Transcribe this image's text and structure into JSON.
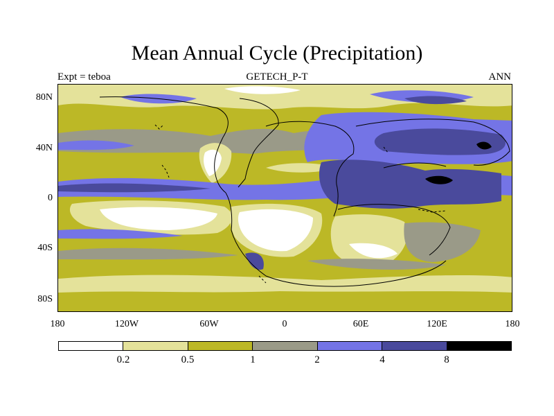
{
  "title": "Mean Annual Cycle (Precipitation)",
  "subtitle_left": "Expt = teboa",
  "subtitle_center": "GETECH_P-T",
  "subtitle_right": "ANN",
  "lat_labels": [
    "80N",
    "40N",
    "0",
    "40S",
    "80S"
  ],
  "lon_labels": [
    "180",
    "120W",
    "60W",
    "0",
    "60E",
    "120E",
    "180"
  ],
  "legend": {
    "colors": [
      "#ffffff",
      "#e4e29a",
      "#bcb826",
      "#9a9a88",
      "#7474e6",
      "#4a4a9c",
      "#000000"
    ],
    "labels": [
      "0.2",
      "0.5",
      "1",
      "2",
      "4",
      "8"
    ]
  }
}
